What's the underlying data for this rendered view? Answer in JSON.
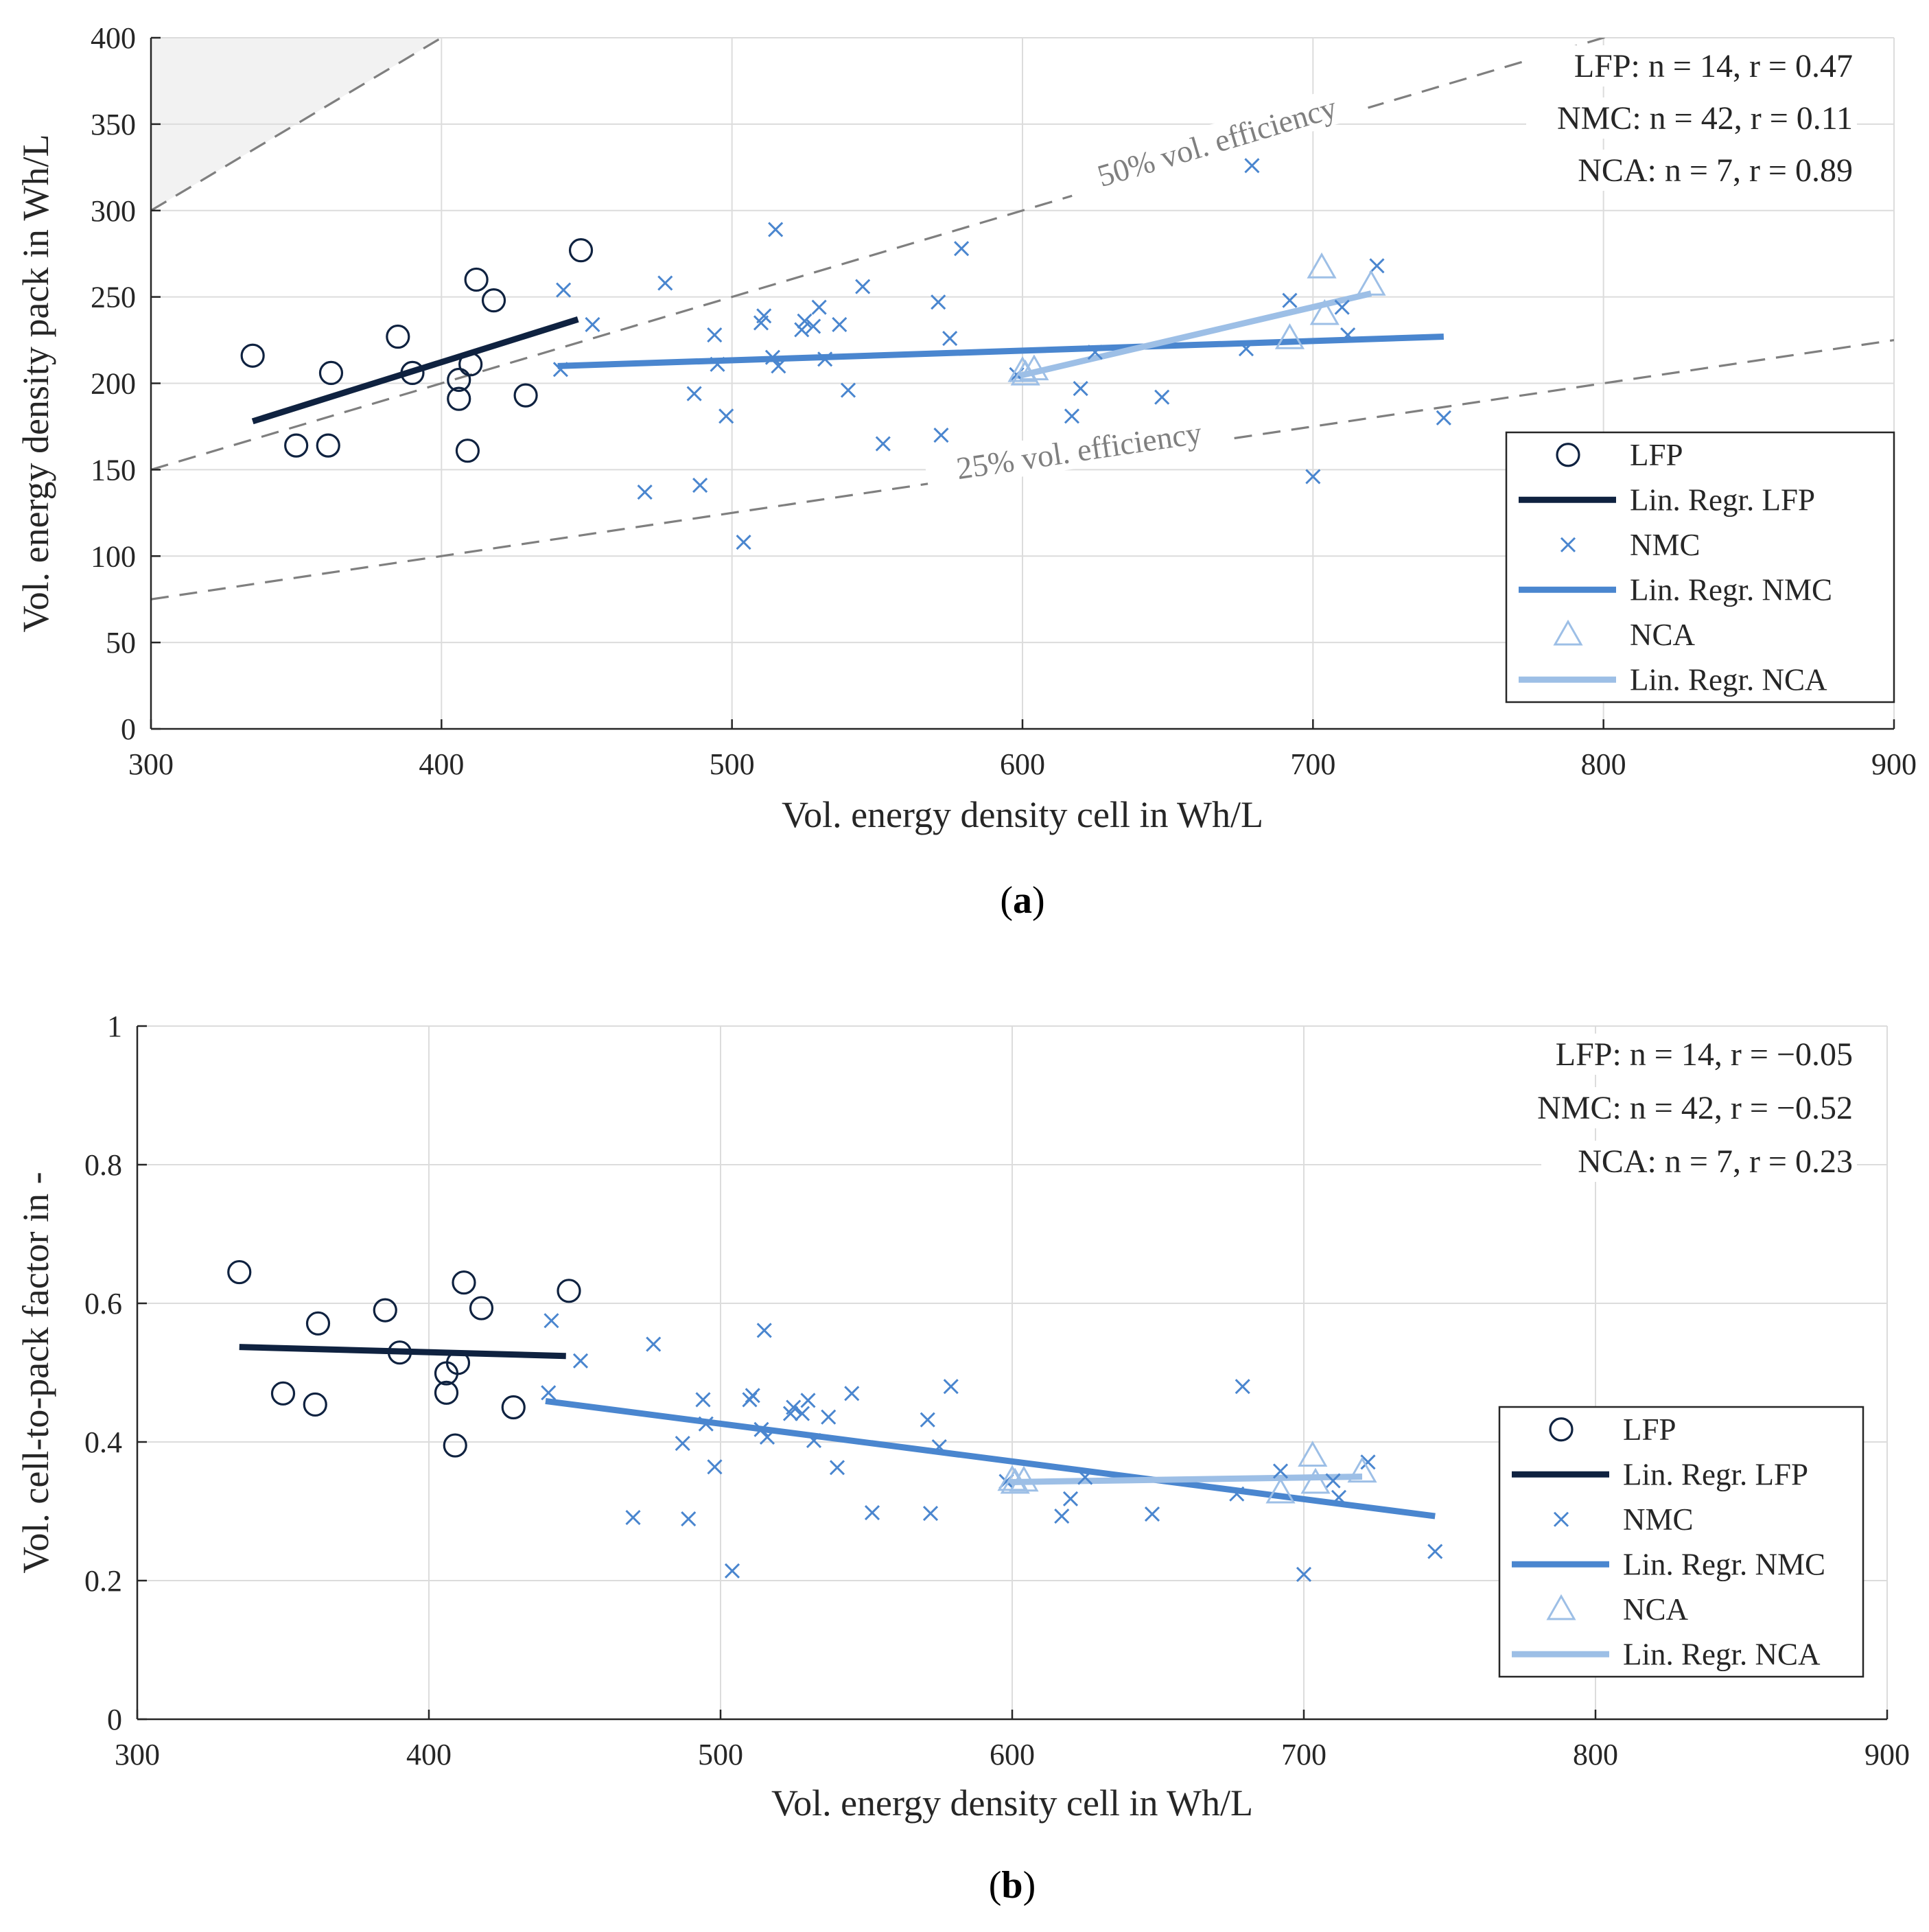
{
  "colors": {
    "LFP": "#0f2240",
    "NMC": "#4a86cf",
    "NCA": "#9dbfe6",
    "reference": "#7f7f7f",
    "grid": "#dcdcdc",
    "shade": "#f2f2f2"
  },
  "chart_data": [
    {
      "id": "a",
      "type": "scatter",
      "panel_label_prefix": "(",
      "panel_label_letter": "a",
      "panel_label_suffix": ")",
      "xlabel": "Vol. energy density cell in Wh/L",
      "ylabel": "Vol. energy density pack in Wh/L",
      "xlim": [
        300,
        900
      ],
      "ylim": [
        0,
        400
      ],
      "xticks": [
        300,
        400,
        500,
        600,
        700,
        800,
        900
      ],
      "yticks": [
        0,
        50,
        100,
        150,
        200,
        250,
        300,
        350,
        400
      ],
      "grid": true,
      "shaded_region": "above 100% vol. efficiency (pack = cell)",
      "reference_lines": [
        {
          "efficiency": 1.0,
          "label": ""
        },
        {
          "efficiency": 0.5,
          "label": "50% vol. efficiency",
          "label_at_x": 668
        },
        {
          "efficiency": 0.25,
          "label": "25% vol. efficiency",
          "label_at_x": 620
        }
      ],
      "annotations": [
        "LFP: n = 14, r = 0.47",
        "NMC: n = 42, r = 0.11",
        "NCA: n = 7, r = 0.89"
      ],
      "legend_position": "lower-right",
      "legend": [
        "LFP",
        "Lin. Regr. LFP",
        "NMC",
        "Lin. Regr. NMC",
        "NCA",
        "Lin. Regr. NCA"
      ],
      "series": [
        {
          "name": "LFP",
          "marker": "circle",
          "points": [
            [
              335,
              216
            ],
            [
              350,
              164
            ],
            [
              361,
              164
            ],
            [
              362,
              206
            ],
            [
              385,
              227
            ],
            [
              390,
              206
            ],
            [
              406,
              202
            ],
            [
              406,
              191
            ],
            [
              409,
              161
            ],
            [
              410,
              211
            ],
            [
              412,
              260
            ],
            [
              418,
              248
            ],
            [
              429,
              193
            ],
            [
              448,
              277
            ]
          ]
        },
        {
          "name": "Lin. Regr. LFP",
          "marker": "line",
          "points": [
            [
              335,
              178
            ],
            [
              447,
              237
            ]
          ]
        },
        {
          "name": "NMC",
          "marker": "x",
          "points": [
            [
              441,
              208
            ],
            [
              442,
              254
            ],
            [
              452,
              234
            ],
            [
              470,
              137
            ],
            [
              477,
              258
            ],
            [
              487,
              194
            ],
            [
              489,
              141
            ],
            [
              494,
              228
            ],
            [
              495,
              211
            ],
            [
              498,
              181
            ],
            [
              504,
              108
            ],
            [
              510,
              235
            ],
            [
              511,
              239
            ],
            [
              514,
              215
            ],
            [
              515,
              289
            ],
            [
              516,
              210
            ],
            [
              524,
              231
            ],
            [
              525,
              236
            ],
            [
              528,
              233
            ],
            [
              530,
              244
            ],
            [
              532,
              214
            ],
            [
              537,
              234
            ],
            [
              540,
              196
            ],
            [
              545,
              256
            ],
            [
              552,
              165
            ],
            [
              571,
              247
            ],
            [
              572,
              170
            ],
            [
              575,
              226
            ],
            [
              579,
              278
            ],
            [
              598,
              205
            ],
            [
              617,
              181
            ],
            [
              620,
              197
            ],
            [
              648,
              192
            ],
            [
              677,
              220
            ],
            [
              679,
              326
            ],
            [
              692,
              248
            ],
            [
              700,
              146
            ],
            [
              710,
              244
            ],
            [
              712,
              228
            ],
            [
              722,
              268
            ],
            [
              745,
              180
            ],
            [
              625,
              218
            ]
          ]
        },
        {
          "name": "Lin. Regr. NMC",
          "marker": "line",
          "points": [
            [
              440,
              210
            ],
            [
              745,
              227
            ]
          ]
        },
        {
          "name": "NCA",
          "marker": "triangle",
          "points": [
            [
              600,
              207
            ],
            [
              604,
              208
            ],
            [
              692,
              226
            ],
            [
              703,
              267
            ],
            [
              704,
              240
            ],
            [
              720,
              257
            ],
            [
              601,
              205
            ]
          ]
        },
        {
          "name": "Lin. Regr. NCA",
          "marker": "line",
          "points": [
            [
              598,
              204
            ],
            [
              720,
              252
            ]
          ]
        }
      ]
    },
    {
      "id": "b",
      "type": "scatter",
      "panel_label_prefix": "(",
      "panel_label_letter": "b",
      "panel_label_suffix": ")",
      "xlabel": "Vol. energy density cell in Wh/L",
      "ylabel": "Vol. cell-to-pack factor in -",
      "xlim": [
        300,
        900
      ],
      "ylim": [
        0,
        1
      ],
      "xticks": [
        300,
        400,
        500,
        600,
        700,
        800,
        900
      ],
      "yticks": [
        0,
        0.2,
        0.4,
        0.6,
        0.8,
        1
      ],
      "ytick_labels": [
        "0",
        "0.2",
        "0.4",
        "0.6",
        "0.8",
        "1"
      ],
      "grid": true,
      "annotations": [
        "LFP: n = 14, r = −0.05",
        "NMC: n = 42, r = −0.52",
        "NCA: n = 7, r = 0.23"
      ],
      "legend_position": "lower-right",
      "legend": [
        "LFP",
        "Lin. Regr. LFP",
        "NMC",
        "Lin. Regr. NMC",
        "NCA",
        "Lin. Regr. NCA"
      ],
      "series": [
        {
          "name": "LFP",
          "marker": "circle",
          "points": [
            [
              335,
              0.645
            ],
            [
              350,
              0.47
            ],
            [
              361,
              0.454
            ],
            [
              362,
              0.571
            ],
            [
              385,
              0.59
            ],
            [
              390,
              0.529
            ],
            [
              406,
              0.499
            ],
            [
              406,
              0.471
            ],
            [
              409,
              0.395
            ],
            [
              410,
              0.514
            ],
            [
              412,
              0.63
            ],
            [
              418,
              0.593
            ],
            [
              429,
              0.45
            ],
            [
              448,
              0.618
            ]
          ]
        },
        {
          "name": "Lin. Regr. LFP",
          "marker": "line",
          "points": [
            [
              335,
              0.537
            ],
            [
              447,
              0.524
            ]
          ]
        },
        {
          "name": "NMC",
          "marker": "x",
          "points": [
            [
              441,
              0.471
            ],
            [
              442,
              0.575
            ],
            [
              452,
              0.517
            ],
            [
              470,
              0.291
            ],
            [
              477,
              0.541
            ],
            [
              487,
              0.398
            ],
            [
              489,
              0.289
            ],
            [
              494,
              0.461
            ],
            [
              495,
              0.426
            ],
            [
              498,
              0.364
            ],
            [
              504,
              0.214
            ],
            [
              510,
              0.461
            ],
            [
              511,
              0.467
            ],
            [
              514,
              0.418
            ],
            [
              515,
              0.561
            ],
            [
              516,
              0.407
            ],
            [
              524,
              0.441
            ],
            [
              525,
              0.45
            ],
            [
              528,
              0.441
            ],
            [
              530,
              0.46
            ],
            [
              532,
              0.402
            ],
            [
              537,
              0.436
            ],
            [
              540,
              0.363
            ],
            [
              545,
              0.47
            ],
            [
              552,
              0.298
            ],
            [
              571,
              0.432
            ],
            [
              572,
              0.297
            ],
            [
              575,
              0.393
            ],
            [
              579,
              0.48
            ],
            [
              598,
              0.343
            ],
            [
              617,
              0.293
            ],
            [
              620,
              0.318
            ],
            [
              625,
              0.349
            ],
            [
              648,
              0.296
            ],
            [
              677,
              0.325
            ],
            [
              679,
              0.48
            ],
            [
              692,
              0.358
            ],
            [
              700,
              0.209
            ],
            [
              710,
              0.344
            ],
            [
              712,
              0.32
            ],
            [
              722,
              0.371
            ],
            [
              745,
              0.242
            ]
          ]
        },
        {
          "name": "Lin. Regr. NMC",
          "marker": "line",
          "points": [
            [
              440,
              0.459
            ],
            [
              745,
              0.293
            ]
          ]
        },
        {
          "name": "NCA",
          "marker": "triangle",
          "points": [
            [
              600,
              0.345
            ],
            [
              604,
              0.344
            ],
            [
              692,
              0.327
            ],
            [
              703,
              0.38
            ],
            [
              704,
              0.341
            ],
            [
              720,
              0.357
            ],
            [
              601,
              0.341
            ]
          ]
        },
        {
          "name": "Lin. Regr. NCA",
          "marker": "line",
          "points": [
            [
              598,
              0.342
            ],
            [
              720,
              0.35
            ]
          ]
        }
      ]
    }
  ]
}
